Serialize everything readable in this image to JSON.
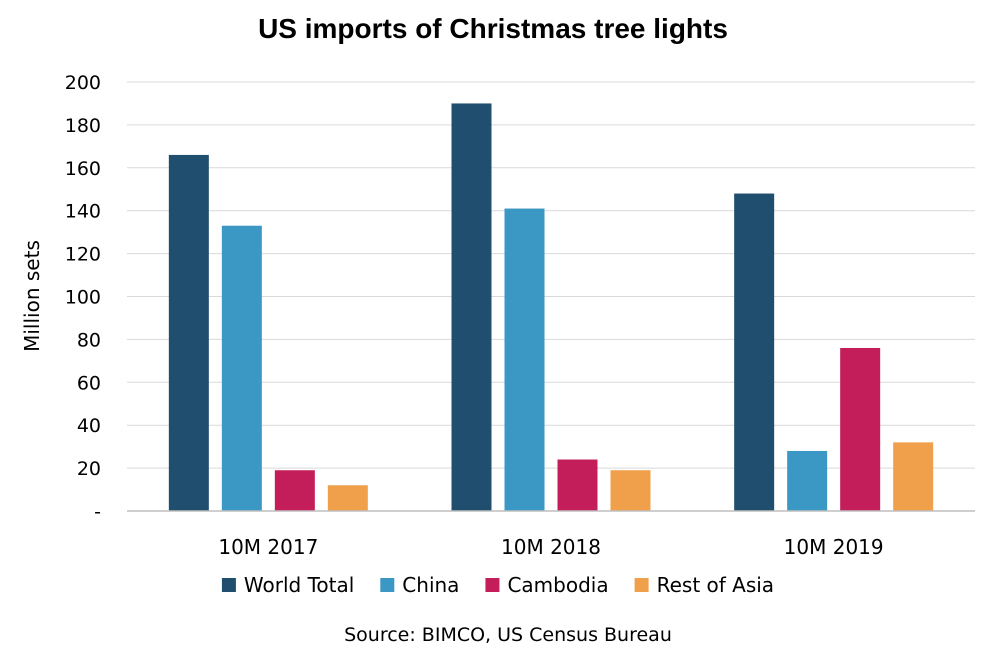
{
  "chart_data": {
    "type": "bar",
    "title": "US imports of Christmas tree lights",
    "ylabel": "Million sets",
    "xlabel": "",
    "ylim": [
      0,
      200
    ],
    "yticks": [
      {
        "value": 0,
        "label": "-"
      },
      {
        "value": 20,
        "label": "20"
      },
      {
        "value": 40,
        "label": "40"
      },
      {
        "value": 60,
        "label": "60"
      },
      {
        "value": 80,
        "label": "80"
      },
      {
        "value": 100,
        "label": "100"
      },
      {
        "value": 120,
        "label": "120"
      },
      {
        "value": 140,
        "label": "140"
      },
      {
        "value": 160,
        "label": "160"
      },
      {
        "value": 180,
        "label": "180"
      },
      {
        "value": 200,
        "label": "200"
      }
    ],
    "grid": true,
    "legend_position": "bottom",
    "categories": [
      "10M 2017",
      "10M 2018",
      "10M 2019"
    ],
    "series": [
      {
        "name": "World Total",
        "color": "#1f4e6e",
        "values": [
          166,
          190,
          148
        ]
      },
      {
        "name": "China",
        "color": "#3b98c4",
        "values": [
          133,
          141,
          28
        ]
      },
      {
        "name": "Cambodia",
        "color": "#c41e5a",
        "values": [
          19,
          24,
          76
        ]
      },
      {
        "name": "Rest of Asia",
        "color": "#f0a04b",
        "values": [
          12,
          19,
          32
        ]
      }
    ],
    "source": "Source: BIMCO, US Census Bureau"
  }
}
